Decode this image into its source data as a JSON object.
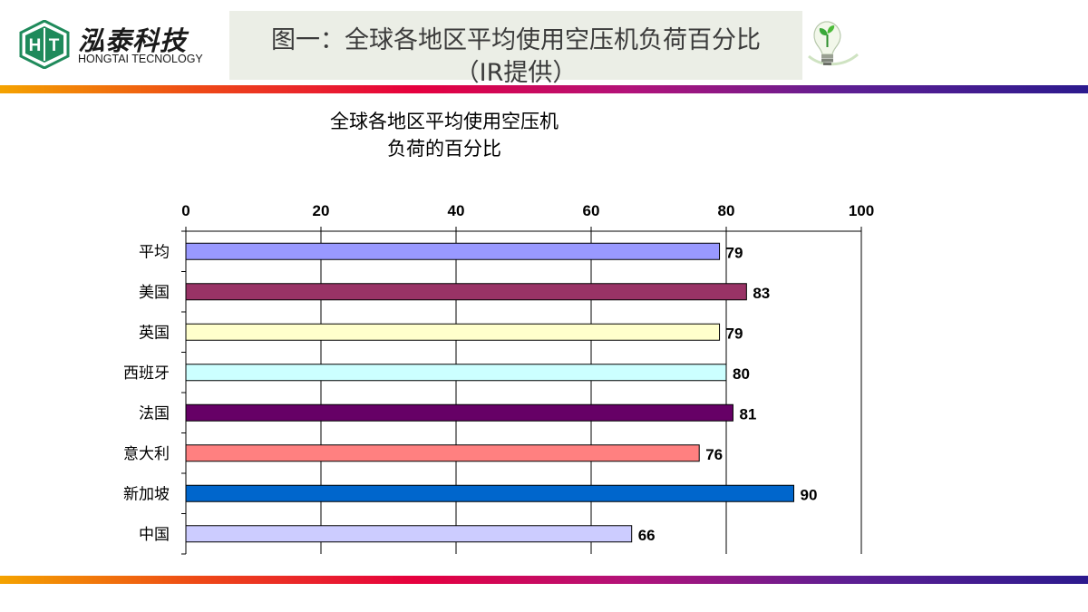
{
  "logo": {
    "cn": "泓泰科技",
    "en": "HONGTAI TECNOLOGY",
    "mark_left": "H",
    "mark_right": "T"
  },
  "header": {
    "line1": "图一：全球各地区平均使用空压机负荷百分比",
    "line2": "（IR提供）"
  },
  "colors": {
    "stripe": [
      "#f4a300",
      "#e6003e",
      "#5d1f93",
      "#2c1a8e"
    ],
    "header_bg": "#ebeee6",
    "logo_green": "#1f8a5b"
  },
  "icons": {
    "bulb": "lightbulb-sprout-icon",
    "logo": "hongtai-logo-icon"
  },
  "chart_data": {
    "type": "bar",
    "orientation": "horizontal",
    "title_lines": [
      "全球各地区平均使用空压机",
      "负荷的百分比"
    ],
    "categories": [
      "平均",
      "美国",
      "英国",
      "西班牙",
      "法国",
      "意大利",
      "新加坡",
      "中国"
    ],
    "values": [
      79,
      83,
      79,
      80,
      81,
      76,
      90,
      66
    ],
    "bar_colors": [
      "#9999ff",
      "#993366",
      "#ffffcc",
      "#ccffff",
      "#660066",
      "#ff8080",
      "#0066cc",
      "#ccccff"
    ],
    "xlim": [
      0,
      100
    ],
    "xticks": [
      0,
      20,
      40,
      60,
      80,
      100
    ],
    "x_axis_position": "top",
    "grid": true,
    "data_labels": true,
    "legend": "none"
  }
}
